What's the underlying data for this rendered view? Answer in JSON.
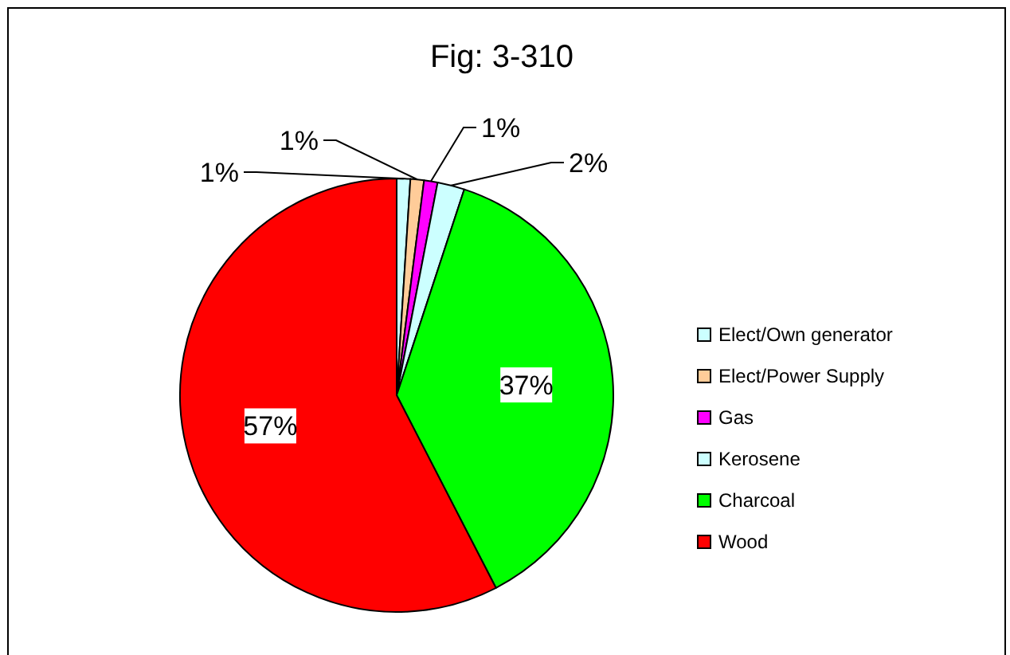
{
  "chart_data": {
    "type": "pie",
    "title": "Fig: 3-310",
    "categories": [
      "Elect/Own generator",
      "Elect/Power Supply",
      "Gas",
      "Kerosene",
      "Charcoal",
      "Wood"
    ],
    "values": [
      1,
      1,
      1,
      2,
      37,
      57
    ],
    "colors": [
      "#ccffff",
      "#ffcc99",
      "#ff00ff",
      "#ccffff",
      "#00ff00",
      "#ff0000"
    ],
    "value_labels": [
      "1%",
      "1%",
      "1%",
      "2%",
      "37%",
      "57%"
    ],
    "legend": "right"
  }
}
